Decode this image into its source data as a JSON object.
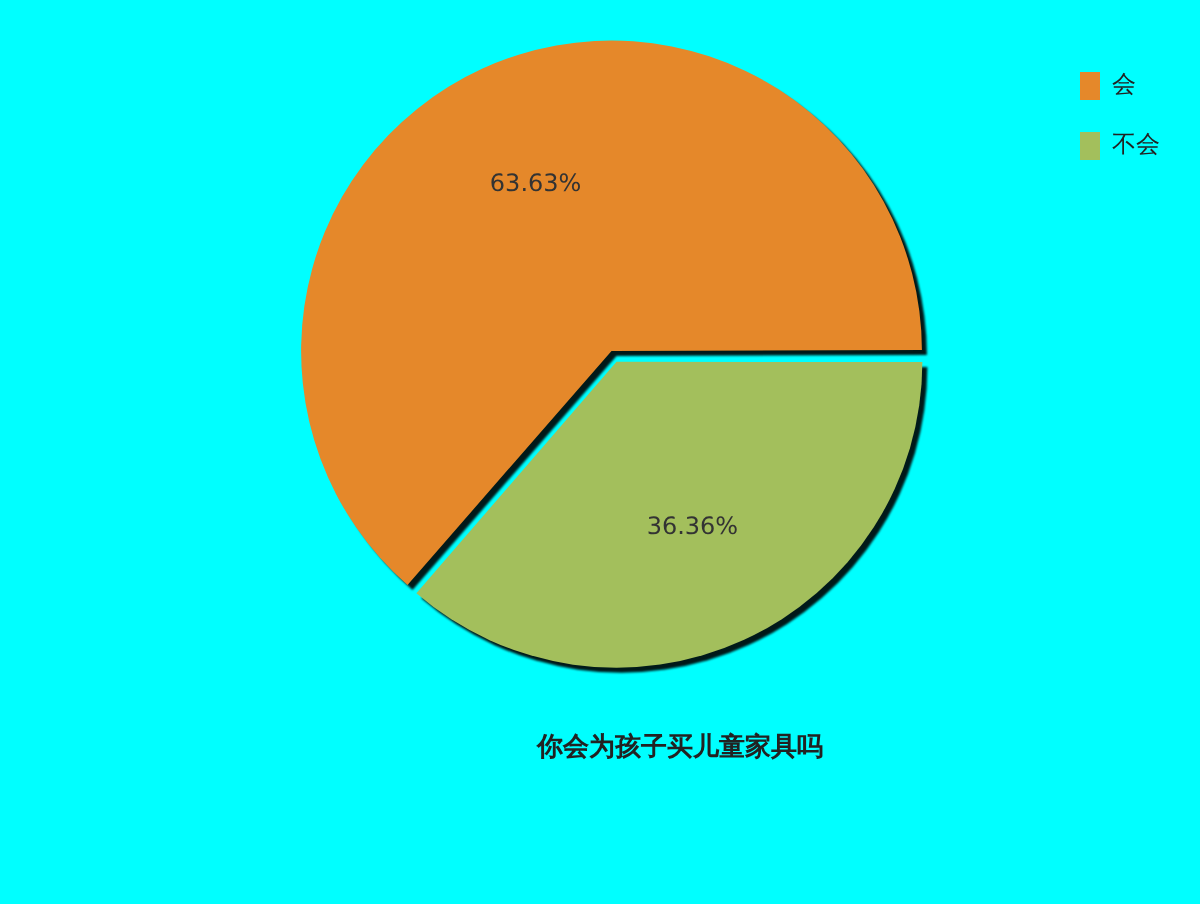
{
  "chart_data": {
    "type": "pie",
    "title": "你会为孩子买儿童家具吗",
    "categories": [
      "会",
      "不会"
    ],
    "values": [
      63.63,
      36.36
    ],
    "colors": [
      "#e5882a",
      "#a3bf5c"
    ],
    "value_labels": [
      "63.63%",
      "36.36%"
    ],
    "legend": "top right"
  }
}
